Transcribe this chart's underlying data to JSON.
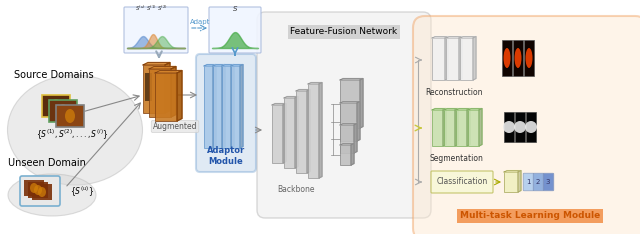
{
  "bg_color": "#ffffff",
  "source_domain_label": "Source Domains",
  "unseen_domain_label": "Unseen Domain",
  "augmented_label": "Augmented",
  "adaptor_label": "Adaptor\nModule",
  "backbone_label": "Backbone",
  "feature_fusion_label": "Feature-Fusion Network",
  "reconstruction_label": "Reconstruction",
  "segmentation_label": "Segmentation",
  "classification_label": "Classification",
  "multitask_label": "Multi-task Learning Module",
  "adapt_label": "Adapt",
  "adaptor_fill": "#a8c4e0",
  "adaptor_border": "#6699cc",
  "seg_fill": "#c8e0b0",
  "seg_border": "#80b060",
  "class_fill": "#f8f8d8",
  "class_border": "#c0c060",
  "source_border_colors": [
    "#e0c040",
    "#60a060",
    "#808080"
  ],
  "multitask_border": "#f0a060",
  "multitask_fill": "#fde8d0"
}
